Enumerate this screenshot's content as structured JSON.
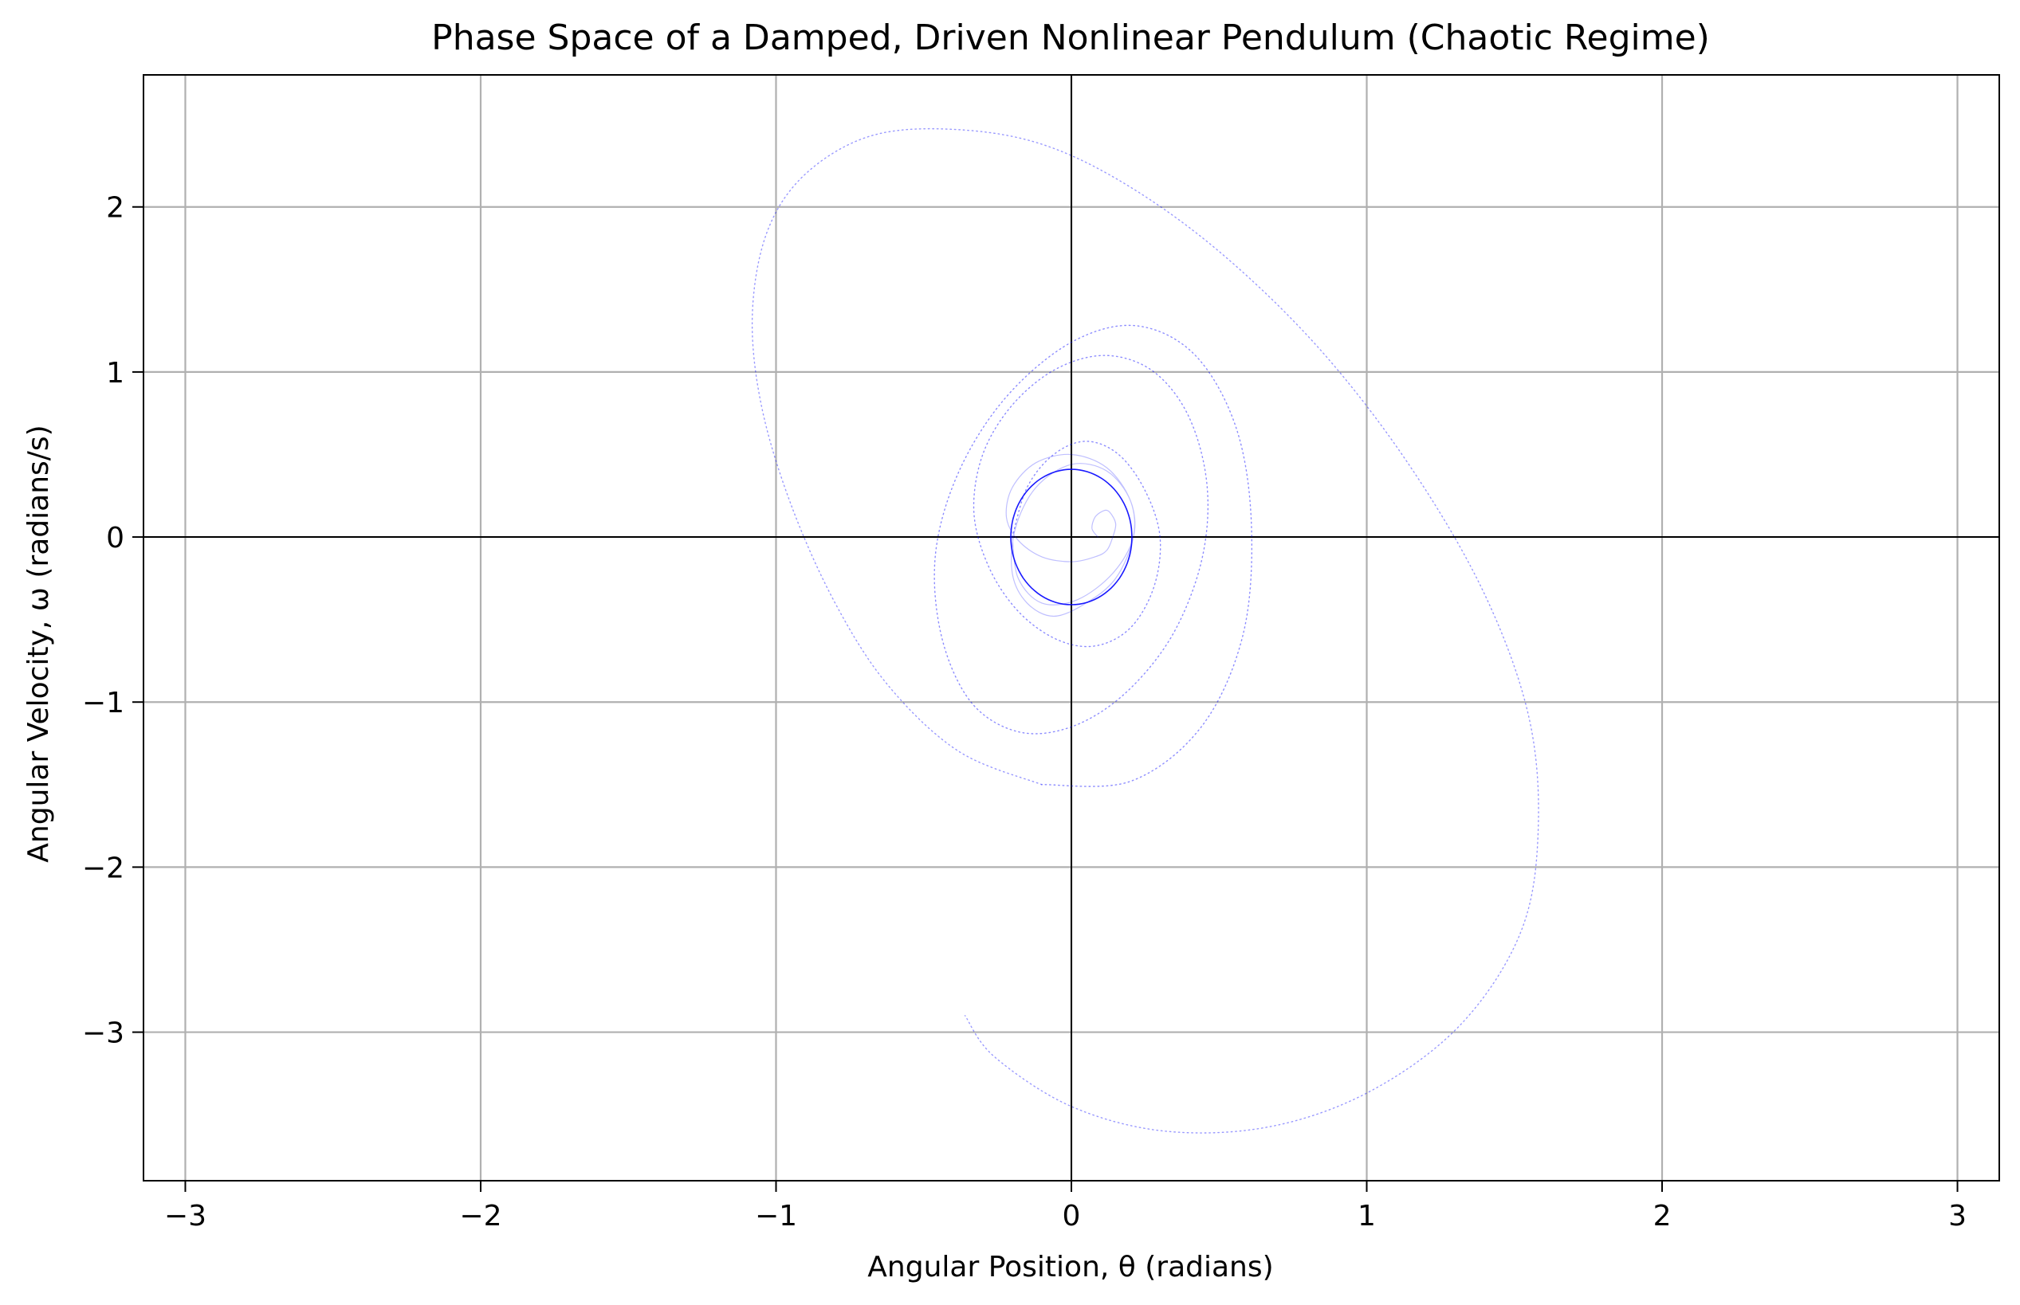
{
  "chart_data": {
    "type": "line",
    "title": "Phase Space of a Damped, Driven Nonlinear Pendulum (Chaotic Regime)",
    "xlabel": "Angular Position, θ (radians)",
    "ylabel": "Angular Velocity, ω (radians/s)",
    "xlim": [
      -3.1416,
      3.1416
    ],
    "ylim": [
      -3.9,
      2.8
    ],
    "xticks": [
      -3,
      -2,
      -1,
      0,
      1,
      2,
      3
    ],
    "yticks": [
      -3,
      -2,
      -1,
      0,
      1,
      2
    ],
    "xtick_labels": [
      "−3",
      "−2",
      "−1",
      "0",
      "1",
      "2",
      "3"
    ],
    "ytick_labels": [
      "−3",
      "−2",
      "−1",
      "0",
      "1",
      "2"
    ],
    "grid": true,
    "reference_lines": {
      "x": 0,
      "y": 0
    },
    "line_color": "#0000ff",
    "series": [
      {
        "style": "solid",
        "opacity": 0.25,
        "x": [
          0.09,
          0.07,
          0.08,
          0.11,
          0.13,
          0.15,
          0.14,
          0.12,
          0.08,
          0.0,
          -0.1,
          -0.18,
          -0.22,
          -0.2,
          -0.12,
          0.0,
          0.12,
          0.2,
          0.21,
          0.15,
          0.05,
          -0.06,
          -0.15,
          -0.2,
          -0.19,
          -0.12,
          0.0,
          0.12,
          0.2,
          0.21,
          0.14,
          0.02,
          -0.1,
          -0.18,
          -0.2
        ],
        "y": [
          0.0,
          0.05,
          0.12,
          0.16,
          0.15,
          0.08,
          0.0,
          -0.08,
          -0.12,
          -0.15,
          -0.12,
          -0.02,
          0.12,
          0.3,
          0.45,
          0.5,
          0.42,
          0.22,
          0.0,
          -0.25,
          -0.4,
          -0.48,
          -0.4,
          -0.22,
          0.05,
          0.3,
          0.44,
          0.4,
          0.22,
          0.0,
          -0.22,
          -0.38,
          -0.4,
          -0.25,
          0.0
        ]
      },
      {
        "style": "dotted",
        "opacity": 0.45,
        "x": [
          -0.2,
          -0.15,
          -0.06,
          0.05,
          0.16,
          0.25,
          0.3,
          0.28,
          0.2,
          0.08,
          -0.05,
          -0.18,
          -0.28,
          -0.33,
          -0.3,
          -0.2,
          -0.05,
          0.12,
          0.28,
          0.4,
          0.46,
          0.44,
          0.34,
          0.18,
          0.0,
          -0.18,
          -0.34,
          -0.44,
          -0.46,
          -0.38,
          -0.22,
          0.0,
          0.22,
          0.42,
          0.56,
          0.61,
          0.58,
          0.44,
          0.2,
          -0.1
        ],
        "y": [
          0.0,
          0.3,
          0.5,
          0.58,
          0.5,
          0.28,
          0.0,
          -0.3,
          -0.55,
          -0.66,
          -0.62,
          -0.45,
          -0.18,
          0.15,
          0.5,
          0.8,
          1.02,
          1.1,
          1.0,
          0.72,
          0.3,
          -0.15,
          -0.6,
          -0.95,
          -1.15,
          -1.18,
          -1.0,
          -0.6,
          -0.1,
          0.4,
          0.85,
          1.18,
          1.28,
          1.1,
          0.65,
          0.05,
          -0.6,
          -1.15,
          -1.48,
          -1.5
        ]
      },
      {
        "style": "dotted",
        "opacity": 0.4,
        "x": [
          -0.1,
          -0.38,
          -0.62,
          -0.8,
          -0.95,
          -1.05,
          -1.08,
          -1.03,
          -0.9,
          -0.68,
          -0.4,
          -0.1,
          0.2,
          0.52,
          0.85,
          1.15,
          1.4,
          1.55,
          1.58,
          1.52,
          1.32,
          1.02,
          0.68,
          0.32,
          0.0,
          -0.26,
          -0.36
        ],
        "y": [
          -1.5,
          -1.3,
          -0.9,
          -0.4,
          0.2,
          0.8,
          1.35,
          1.85,
          2.2,
          2.43,
          2.47,
          2.38,
          2.12,
          1.7,
          1.12,
          0.42,
          -0.35,
          -1.1,
          -1.8,
          -2.4,
          -2.95,
          -3.35,
          -3.57,
          -3.6,
          -3.45,
          -3.15,
          -2.9
        ]
      }
    ]
  }
}
